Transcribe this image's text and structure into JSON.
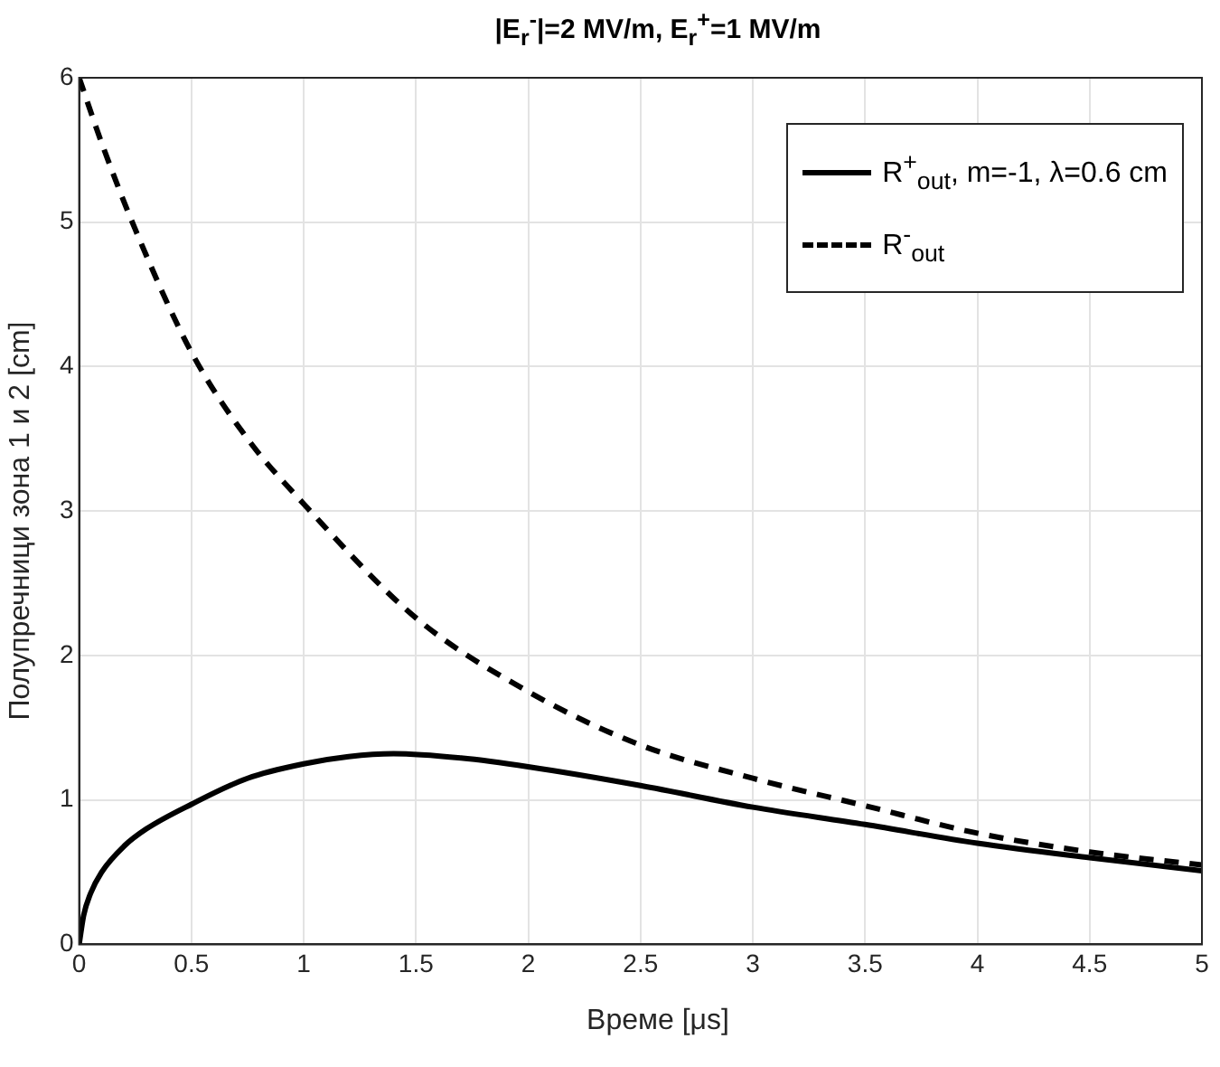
{
  "chart_data": {
    "type": "line",
    "title": "|E$_{r}$$^{-}$|=2 MV/m, E$_{r}$$^{+}$=1 MV/m",
    "xlabel": "Време [μs]",
    "ylabel": "Полупречници зона 1 и 2 [cm]",
    "xlim": [
      0,
      5
    ],
    "xticks": [
      0,
      0.5,
      1,
      1.5,
      2,
      2.5,
      3,
      3.5,
      4,
      4.5,
      5
    ],
    "ylim": [
      0,
      6
    ],
    "yticks": [
      0,
      1,
      2,
      3,
      4,
      5,
      6
    ],
    "grid": true,
    "legend": "top right",
    "marker": "none",
    "series": [
      {
        "name": "R$^{+}$$_{out}$, m=-1, λ=0.6 cm",
        "color": "#000000",
        "line_style": "solid",
        "x": [
          0,
          0.02,
          0.05,
          0.1,
          0.2,
          0.3,
          0.5,
          0.75,
          1,
          1.2,
          1.4,
          1.7,
          2,
          2.5,
          3,
          3.5,
          4,
          4.5,
          5
        ],
        "values": [
          0,
          0.2,
          0.35,
          0.5,
          0.68,
          0.8,
          0.97,
          1.15,
          1.25,
          1.3,
          1.32,
          1.29,
          1.23,
          1.1,
          0.95,
          0.83,
          0.7,
          0.6,
          0.51
        ]
      },
      {
        "name": "R$^{-}$$_{out}$",
        "color": "#000000",
        "line_style": "dashed",
        "x": [
          0,
          0.1,
          0.25,
          0.5,
          0.75,
          1,
          1.5,
          2,
          2.5,
          3,
          3.5,
          4,
          4.5,
          5
        ],
        "values": [
          6,
          5.55,
          4.95,
          4.1,
          3.5,
          3.05,
          2.26,
          1.75,
          1.38,
          1.15,
          0.96,
          0.77,
          0.64,
          0.55
        ]
      }
    ]
  }
}
